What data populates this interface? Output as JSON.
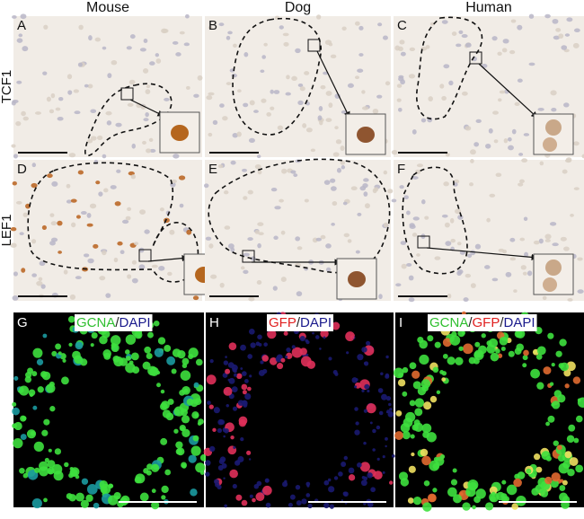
{
  "columns": [
    "Mouse",
    "Dog",
    "Human"
  ],
  "rows": [
    "TCF1",
    "LEF1"
  ],
  "panel_letters": [
    "A",
    "B",
    "C",
    "D",
    "E",
    "F",
    "G",
    "H",
    "I"
  ],
  "fluorescence_labels": [
    [
      {
        "text": "GCNA",
        "color": "#2fbf2f"
      },
      {
        "text": "/",
        "color": "#222222"
      },
      {
        "text": "DAPI",
        "color": "#1a1a8c"
      }
    ],
    [
      {
        "text": "GFP",
        "color": "#e02020"
      },
      {
        "text": "/",
        "color": "#222222"
      },
      {
        "text": "DAPI",
        "color": "#1a1a8c"
      }
    ],
    [
      {
        "text": "GCNA",
        "color": "#2fbf2f"
      },
      {
        "text": "/",
        "color": "#222222"
      },
      {
        "text": "GFP",
        "color": "#e02020"
      },
      {
        "text": "/",
        "color": "#222222"
      },
      {
        "text": "DAPI",
        "color": "#1a1a8c"
      }
    ]
  ]
}
